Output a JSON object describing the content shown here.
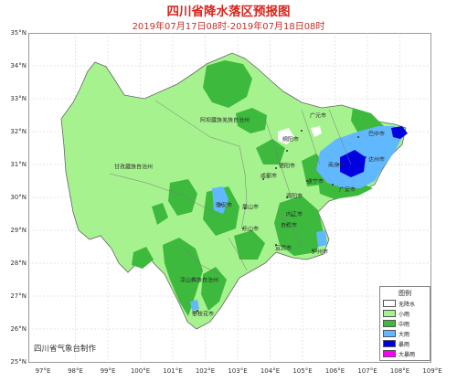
{
  "header": {
    "title": "四川省降水落区预报图",
    "subtitle": "2019年07月17日08时-2019年07月18日08时"
  },
  "credit": "四川省气象台制作",
  "axes": {
    "latitudes": [
      "35°N",
      "34°N",
      "33°N",
      "32°N",
      "31°N",
      "30°N",
      "29°N",
      "28°N",
      "27°N",
      "26°N",
      "25°N"
    ],
    "longitudes": [
      "97°E",
      "98°E",
      "99°E",
      "100°E",
      "101°E",
      "102°E",
      "103°E",
      "104°E",
      "105°E",
      "106°E",
      "107°E",
      "108°E",
      "109°E"
    ]
  },
  "regions": {
    "aba": "阿坝藏族羌族自治州",
    "ganzi": "甘孜藏族自治州",
    "liangshan": "凉山彝族自治州"
  },
  "cities": {
    "guangyuan": "广元市",
    "bazhong": "巴中市",
    "mianyang": "绵阳市",
    "deyang": "德阳市",
    "nanchong": "南充市",
    "dazhou": "达州市",
    "suining": "遂宁市",
    "guangan": "广安市",
    "chengdu": "成都市",
    "yaan": "雅安市",
    "meishan": "眉山市",
    "ziyang": "资阳市",
    "neijiang": "内江市",
    "zigong": "自贡市",
    "leshan": "乐山市",
    "yibin": "宜宾市",
    "luzhou": "泸州市",
    "panzhihua": "攀枝花市"
  },
  "legend": {
    "title": "图例",
    "items": [
      {
        "label": "无降水",
        "color": "#ffffff"
      },
      {
        "label": "小雨",
        "color": "#a6f28f"
      },
      {
        "label": "中雨",
        "color": "#3dba3d"
      },
      {
        "label": "大雨",
        "color": "#61b8ff"
      },
      {
        "label": "暴雨",
        "color": "#0000e1"
      },
      {
        "label": "大暴雨",
        "color": "#fa00fa"
      }
    ]
  }
}
